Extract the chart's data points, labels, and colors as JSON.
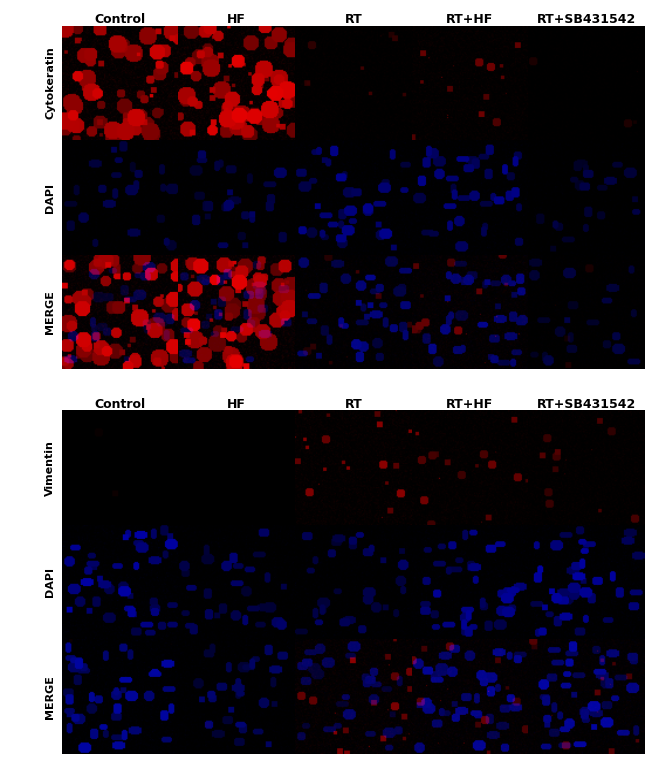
{
  "col_labels": [
    "Control",
    "HF",
    "RT",
    "RT+HF",
    "RT+SB431542"
  ],
  "section1_row_labels": [
    "Cytokeratin",
    "DAPI",
    "MERGE"
  ],
  "section2_row_labels": [
    "Vimentin",
    "DAPI",
    "MERGE"
  ],
  "figure_bg": "#ffffff",
  "panel_bg": "#000000",
  "col_label_fontsize": 9,
  "row_label_fontsize": 8,
  "cytokeratin": {
    "red_intensity": [
      [
        0.85,
        0.9,
        0.25,
        0.45,
        0.12
      ],
      [
        0.0,
        0.0,
        0.0,
        0.0,
        0.0
      ],
      [
        0.85,
        0.9,
        0.25,
        0.45,
        0.12
      ]
    ],
    "blue_intensity": [
      [
        0.0,
        0.0,
        0.0,
        0.0,
        0.0
      ],
      [
        0.35,
        0.4,
        0.55,
        0.55,
        0.3
      ],
      [
        0.35,
        0.4,
        0.55,
        0.55,
        0.3
      ]
    ]
  },
  "vimentin": {
    "red_intensity": [
      [
        0.05,
        0.04,
        0.55,
        0.45,
        0.35
      ],
      [
        0.0,
        0.0,
        0.0,
        0.0,
        0.0
      ],
      [
        0.05,
        0.04,
        0.55,
        0.45,
        0.35
      ]
    ],
    "blue_intensity": [
      [
        0.0,
        0.0,
        0.0,
        0.0,
        0.0
      ],
      [
        0.65,
        0.45,
        0.45,
        0.6,
        0.65
      ],
      [
        0.65,
        0.45,
        0.45,
        0.6,
        0.65
      ]
    ]
  },
  "panel_seeds": [
    [
      [
        0,
        1,
        2,
        3,
        4
      ],
      [
        5,
        6,
        7,
        8,
        9
      ],
      [
        10,
        11,
        12,
        13,
        14
      ]
    ],
    [
      [
        15,
        16,
        17,
        18,
        19
      ],
      [
        20,
        21,
        22,
        23,
        24
      ],
      [
        25,
        26,
        27,
        28,
        29
      ]
    ]
  ]
}
